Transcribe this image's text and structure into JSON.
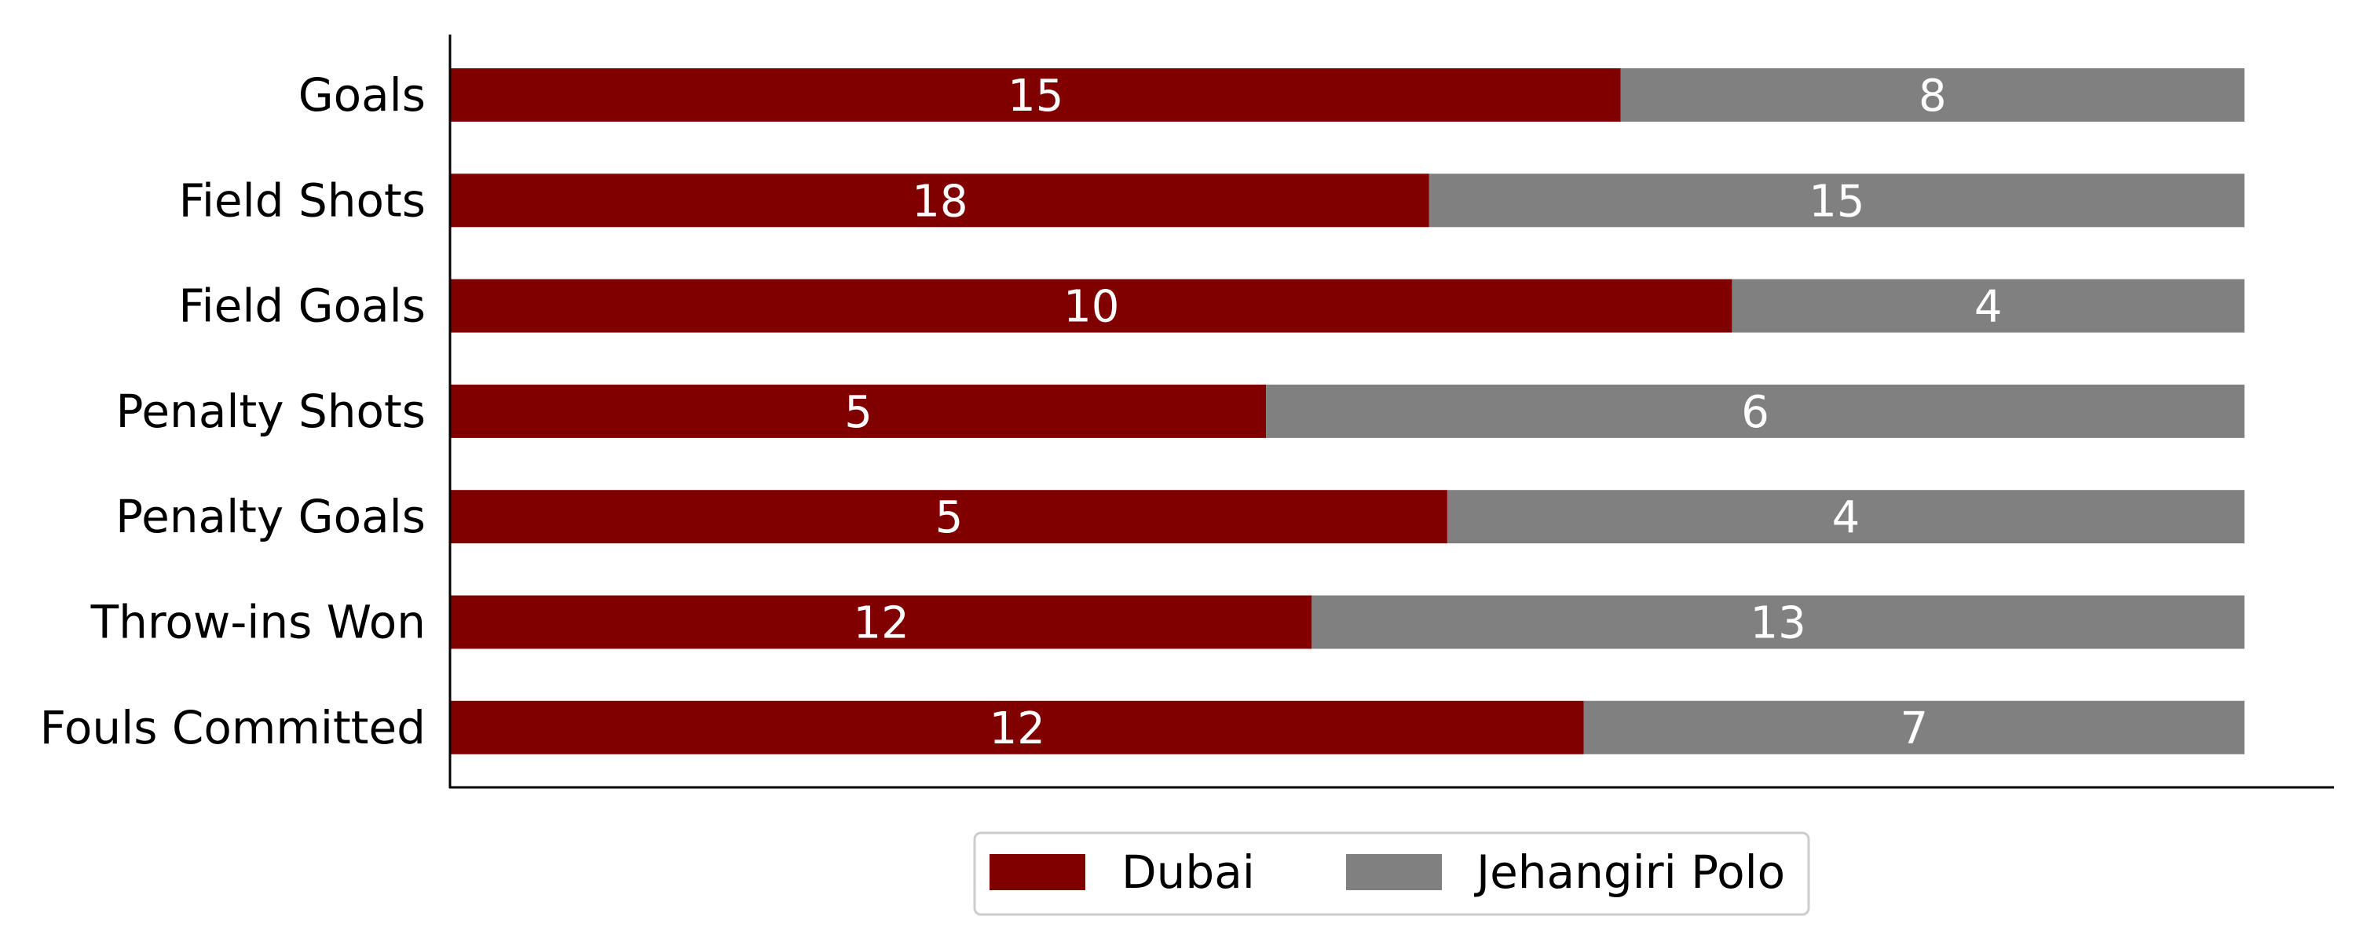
{
  "chart_data": {
    "type": "bar",
    "orientation": "horizontal",
    "stacked": true,
    "normalized": true,
    "categories": [
      "Goals",
      "Field Shots",
      "Field Goals",
      "Penalty Shots",
      "Penalty Goals",
      "Throw-ins Won",
      "Fouls Committed"
    ],
    "series": [
      {
        "name": "Dubai",
        "color": "#800000",
        "values": [
          15,
          18,
          10,
          5,
          5,
          12,
          12
        ]
      },
      {
        "name": "Jehangiri Polo",
        "color": "#808080",
        "values": [
          8,
          15,
          4,
          6,
          4,
          13,
          7
        ]
      }
    ],
    "title": "",
    "xlabel": "",
    "ylabel": "",
    "grid": false,
    "legend_position": "bottom-center",
    "value_labels": "inside-center"
  }
}
